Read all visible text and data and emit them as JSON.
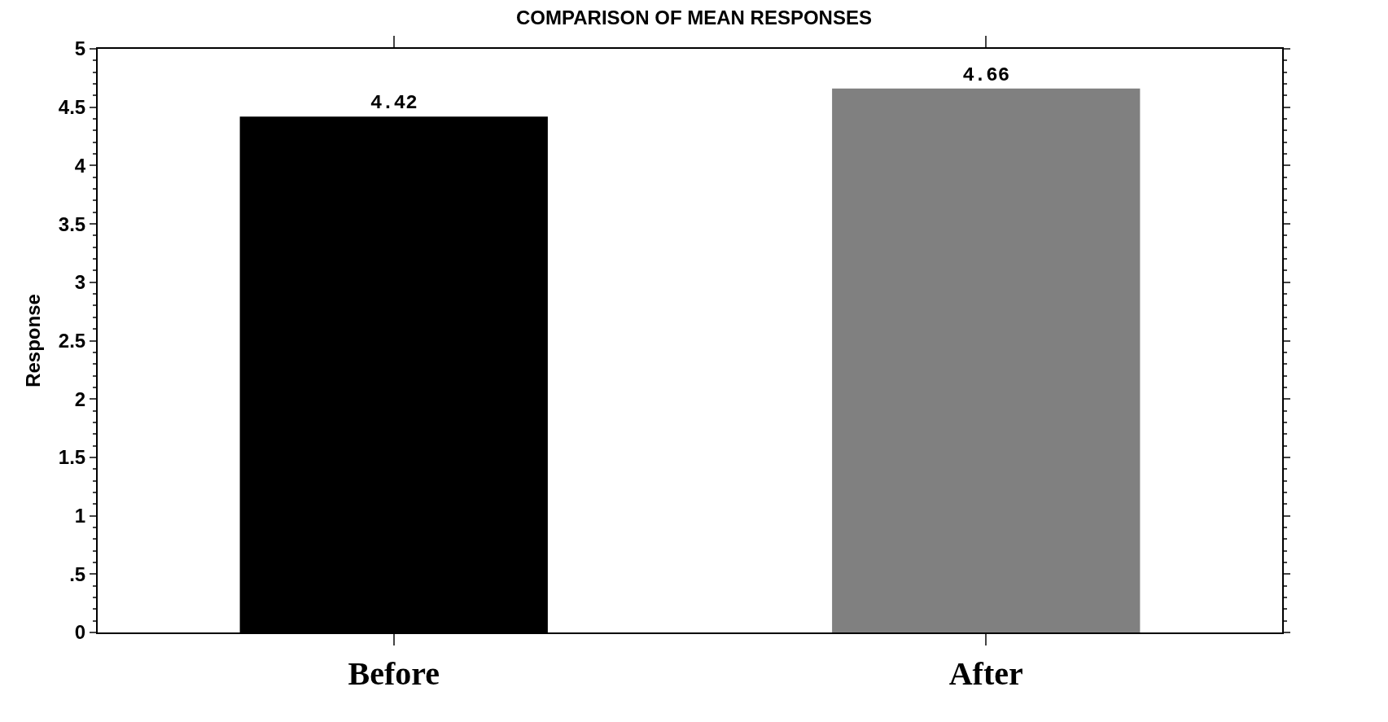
{
  "chart_data": {
    "type": "bar",
    "title": "COMPARISON OF MEAN RESPONSES",
    "ylabel": "Response",
    "categories": [
      "Before",
      "After"
    ],
    "values": [
      4.42,
      4.66
    ],
    "colors": [
      "#000000",
      "#808080"
    ],
    "ylim": [
      0,
      5
    ],
    "yticks": [
      0,
      {
        "value": 0.5,
        "label": ".5"
      },
      1,
      1.5,
      2,
      2.5,
      3,
      3.5,
      4,
      4.5,
      5
    ],
    "data_labels": true
  }
}
